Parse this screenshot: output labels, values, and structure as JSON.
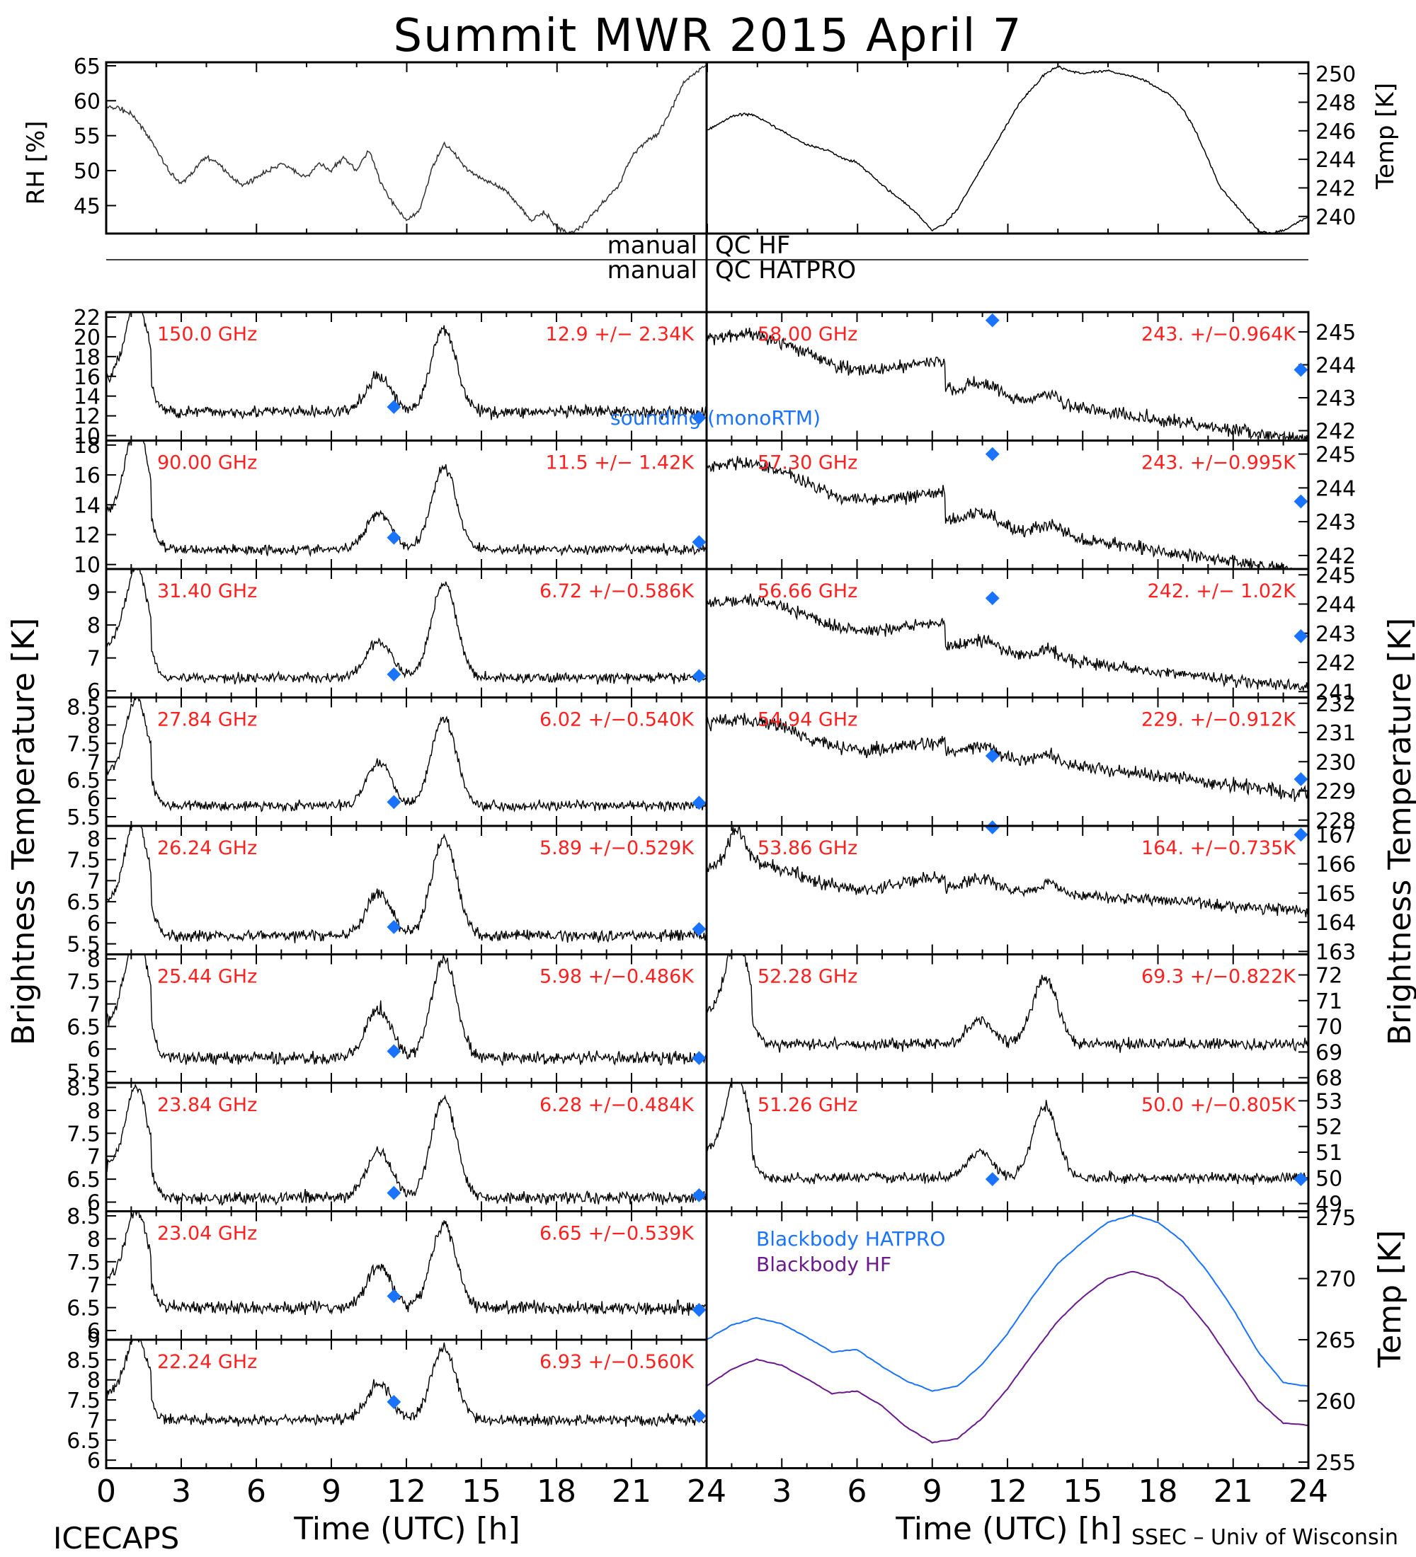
{
  "title": "Summit  MWR  2015  April    7",
  "qc_labels": {
    "manual_1": "manual",
    "qc_hf": "QC  HF",
    "manual_2": "manual",
    "qc_hatpro": "QC  HATPRO"
  },
  "axis_labels": {
    "rh": "RH  [%]",
    "temp_top": "Temp  [K]",
    "brightness_left": "Brightness  Temperature  [K]",
    "brightness_right": "Brightness  Temperature  [K]",
    "temp_bottom": "Temp  [K]",
    "time_left": "Time  (UTC)  [h]",
    "time_right": "Time  (UTC)  [h]"
  },
  "footer": {
    "left": "ICECAPS",
    "right": "SSEC  –  Univ of Wisconsin"
  },
  "legend_sounding": "sounding  (monoRTM)",
  "legend_bb": {
    "hatpro": "Blackbody  HATPRO",
    "hf": "Blackbody  HF"
  },
  "colors": {
    "red": "#ff2020",
    "blue": "#1a73ff",
    "purple": "#6a1a8a",
    "black": "#000000"
  },
  "chart_data": [
    {
      "type": "line",
      "panel": "rh",
      "ylabel": "RH  [%]",
      "ylim": [
        41,
        65.5
      ],
      "yticks": [
        45,
        50,
        55,
        60,
        65
      ],
      "x": [
        0,
        0.5,
        1,
        1.5,
        2,
        2.5,
        3,
        3.5,
        4,
        4.5,
        5,
        5.5,
        6,
        6.5,
        7,
        7.5,
        8,
        8.5,
        9,
        9.5,
        10,
        10.5,
        11,
        11.5,
        12,
        12.5,
        13,
        13.5,
        14,
        14.5,
        15,
        15.5,
        16,
        16.5,
        17,
        17.5,
        18,
        18.5,
        19,
        19.5,
        20,
        20.5,
        21,
        21.5,
        22,
        22.5,
        23,
        23.5,
        24
      ],
      "y": [
        59,
        59,
        58,
        56,
        53,
        50,
        48,
        50,
        52,
        51,
        49,
        48,
        49,
        50,
        51,
        50,
        49,
        51,
        50,
        52,
        50,
        53,
        48,
        45,
        43,
        44,
        50,
        54,
        52,
        50,
        49,
        48,
        47,
        45,
        43,
        44,
        42,
        41,
        42,
        44,
        46,
        48,
        52,
        54,
        55,
        58,
        62,
        64,
        65
      ]
    },
    {
      "type": "line",
      "panel": "temp_top",
      "ylabel": "Temp  [K]",
      "ylim": [
        238.8,
        250.8
      ],
      "yticks": [
        240,
        242,
        244,
        246,
        248,
        250
      ],
      "x": [
        0,
        0.5,
        1,
        1.5,
        2,
        2.5,
        3,
        3.5,
        4,
        4.5,
        5,
        5.5,
        6,
        6.5,
        7,
        7.5,
        8,
        8.5,
        9,
        9.5,
        10,
        10.5,
        11,
        11.5,
        12,
        12.5,
        13,
        13.5,
        14,
        14.5,
        15,
        15.5,
        16,
        16.5,
        17,
        17.5,
        18,
        18.5,
        19,
        19.5,
        20,
        20.5,
        21,
        21.5,
        22,
        22.5,
        23,
        23.5,
        24
      ],
      "y": [
        246,
        246.5,
        247,
        247.2,
        247,
        246.5,
        246,
        245.5,
        245,
        244.8,
        244.5,
        244,
        243.8,
        243,
        242.2,
        241.5,
        240.8,
        240,
        239,
        239.5,
        240.5,
        242,
        243.5,
        245,
        246.5,
        248,
        249,
        250,
        250.5,
        250.2,
        250,
        250.1,
        250.2,
        250,
        249.8,
        249.5,
        249,
        248.5,
        247.5,
        246,
        244,
        242,
        241,
        240,
        239,
        238.8,
        239,
        239.5,
        240
      ]
    },
    {
      "type": "line",
      "panel": "tb",
      "side": "left",
      "label": "150.0 GHz",
      "stat": "12.9  +/−  2.34K",
      "ylim": [
        9.5,
        22.5
      ],
      "yticks": [
        10,
        12,
        14,
        16,
        18,
        20,
        22
      ],
      "base": 12.4,
      "spike": [
        20.5,
        0.6
      ],
      "bump1": 3.6,
      "bump2": 8.5,
      "noise": 0.9,
      "model": [
        [
          11.5,
          12.9
        ],
        [
          23.7,
          11.8
        ]
      ]
    },
    {
      "type": "line",
      "panel": "tb",
      "side": "left",
      "label": "90.00 GHz",
      "stat": "11.5  +/−  1.42K",
      "ylim": [
        9.7,
        18.3
      ],
      "yticks": [
        10,
        12,
        14,
        16,
        18
      ],
      "base": 11.0,
      "spike": [
        17,
        0.6
      ],
      "bump1": 2.5,
      "bump2": 5.5,
      "noise": 0.5,
      "model": [
        [
          11.5,
          11.8
        ],
        [
          23.7,
          11.5
        ]
      ]
    },
    {
      "type": "line",
      "panel": "tb",
      "side": "left",
      "label": "31.40 GHz",
      "stat": "6.72  +/−0.586K",
      "ylim": [
        5.8,
        9.7
      ],
      "yticks": [
        6,
        7,
        8,
        9
      ],
      "base": 6.4,
      "spike": [
        8.8,
        0.6
      ],
      "bump1": 1.1,
      "bump2": 2.9,
      "noise": 0.22,
      "model": [
        [
          11.5,
          6.5
        ],
        [
          23.7,
          6.45
        ]
      ]
    },
    {
      "type": "line",
      "panel": "tb",
      "side": "left",
      "label": "27.84 GHz",
      "stat": "6.02  +/−0.540K",
      "ylim": [
        5.25,
        8.75
      ],
      "yticks": [
        5.5,
        6.0,
        6.5,
        7.0,
        7.5,
        8.0,
        8.5
      ],
      "base": 5.8,
      "spike": [
        7.9,
        0.6
      ],
      "bump1": 1.2,
      "bump2": 2.4,
      "noise": 0.2,
      "model": [
        [
          11.5,
          5.9
        ],
        [
          23.7,
          5.88
        ]
      ]
    },
    {
      "type": "line",
      "panel": "tb",
      "side": "left",
      "label": "26.24 GHz",
      "stat": "5.89  +/−0.529K",
      "ylim": [
        5.25,
        8.3
      ],
      "yticks": [
        5.5,
        6.0,
        6.5,
        7.0,
        7.5,
        8.0
      ],
      "base": 5.7,
      "spike": [
        7.7,
        0.6
      ],
      "bump1": 1.0,
      "bump2": 2.3,
      "noise": 0.2,
      "model": [
        [
          11.5,
          5.9
        ],
        [
          23.7,
          5.85
        ]
      ]
    },
    {
      "type": "line",
      "panel": "tb",
      "side": "left",
      "label": "25.44 GHz",
      "stat": "5.98  +/−0.486K",
      "ylim": [
        5.25,
        8.1
      ],
      "yticks": [
        5.5,
        6.0,
        6.5,
        7.0,
        7.5,
        8.0
      ],
      "base": 5.8,
      "spike": [
        7.8,
        0.6
      ],
      "bump1": 1.1,
      "bump2": 2.2,
      "noise": 0.2,
      "model": [
        [
          11.5,
          5.95
        ],
        [
          23.7,
          5.8
        ]
      ]
    },
    {
      "type": "line",
      "panel": "tb",
      "side": "left",
      "label": "23.84 GHz",
      "stat": "6.28  +/−0.484K",
      "ylim": [
        5.8,
        8.6
      ],
      "yticks": [
        6.0,
        6.5,
        7.0,
        7.5,
        8.0,
        8.5
      ],
      "base": 6.1,
      "spike": [
        7.8,
        0.6
      ],
      "bump1": 1.0,
      "bump2": 2.2,
      "noise": 0.2,
      "model": [
        [
          11.5,
          6.2
        ],
        [
          23.7,
          6.15
        ]
      ]
    },
    {
      "type": "line",
      "panel": "tb",
      "side": "left",
      "label": "23.04 GHz",
      "stat": "6.65  +/−0.539K",
      "ylim": [
        5.8,
        8.6
      ],
      "yticks": [
        6.0,
        6.5,
        7.0,
        7.5,
        8.0,
        8.5
      ],
      "base": 6.5,
      "spike": [
        8.0,
        0.6
      ],
      "bump1": 0.9,
      "bump2": 1.8,
      "noise": 0.2,
      "model": [
        [
          11.5,
          6.75
        ],
        [
          23.7,
          6.45
        ]
      ]
    },
    {
      "type": "line",
      "panel": "tb",
      "side": "left",
      "label": "22.24 GHz",
      "stat": "6.93  +/−0.560K",
      "ylim": [
        5.8,
        9.0
      ],
      "yticks": [
        6.0,
        6.5,
        7.0,
        7.5,
        8.0,
        8.5,
        9.0
      ],
      "base": 7.0,
      "spike": [
        8.5,
        0.6
      ],
      "bump1": 0.9,
      "bump2": 1.8,
      "noise": 0.2,
      "model": [
        [
          11.5,
          7.45
        ],
        [
          23.7,
          7.1
        ]
      ]
    },
    {
      "type": "line",
      "panel": "tb",
      "side": "right",
      "label": "58.00 GHz",
      "stat": "243.  +/−0.964K",
      "ylim": [
        241.7,
        245.6
      ],
      "yticks": [
        242,
        243,
        244,
        245
      ],
      "drift": [
        244.8,
        242.2
      ],
      "noise": 0.3,
      "model": [
        [
          11.4,
          245.35
        ],
        [
          23.7,
          243.85
        ]
      ]
    },
    {
      "type": "line",
      "panel": "tb",
      "side": "right",
      "label": "57.30 GHz",
      "stat": "243.  +/−0.995K",
      "ylim": [
        241.6,
        245.4
      ],
      "yticks": [
        242,
        243,
        244,
        245
      ],
      "drift": [
        244.6,
        242.0
      ],
      "noise": 0.28,
      "model": [
        [
          11.4,
          245.0
        ],
        [
          23.7,
          243.6
        ]
      ]
    },
    {
      "type": "line",
      "panel": "tb",
      "side": "right",
      "label": "56.66 GHz",
      "stat": "242.  +/−  1.02K",
      "ylim": [
        240.8,
        245.2
      ],
      "yticks": [
        241,
        242,
        243,
        244,
        245
      ],
      "drift": [
        244.0,
        241.6
      ],
      "noise": 0.3,
      "model": [
        [
          11.4,
          244.2
        ],
        [
          23.7,
          242.9
        ]
      ]
    },
    {
      "type": "line",
      "panel": "tb",
      "side": "right",
      "label": "54.94 GHz",
      "stat": "229.  +/−0.912K",
      "ylim": [
        227.8,
        232.2
      ],
      "yticks": [
        228,
        229,
        230,
        231,
        232
      ],
      "drift": [
        231.3,
        228.9
      ],
      "noise": 0.35,
      "model": [
        [
          11.4,
          230.2
        ],
        [
          23.7,
          229.4
        ]
      ]
    },
    {
      "type": "line",
      "panel": "tb",
      "side": "right",
      "label": "53.86 GHz",
      "stat": "164.  +/−0.735K",
      "ylim": [
        162.9,
        167.3
      ],
      "yticks": [
        163,
        164,
        165,
        166,
        167
      ],
      "drift": [
        165.8,
        164.4
      ],
      "noise": 0.3,
      "spike": [
        167,
        0.5
      ],
      "model": [
        [
          11.4,
          167.3
        ],
        [
          23.7,
          167.0
        ]
      ]
    },
    {
      "type": "line",
      "panel": "tb",
      "side": "right",
      "label": "52.28 GHz",
      "stat": "69.3  +/−0.822K",
      "ylim": [
        67.8,
        72.8
      ],
      "yticks": [
        68,
        69,
        70,
        71,
        72
      ],
      "base": 69.3,
      "spike": [
        72.3,
        0.6
      ],
      "bump1": 1.0,
      "bump2": 2.6,
      "noise": 0.35,
      "model": []
    },
    {
      "type": "line",
      "panel": "tb",
      "side": "right",
      "label": "51.26 GHz",
      "stat": "50.0  +/−0.805K",
      "ylim": [
        48.7,
        53.7
      ],
      "yticks": [
        49,
        50,
        51,
        52,
        53
      ],
      "base": 50.0,
      "spike": [
        52.8,
        0.6
      ],
      "bump1": 1.0,
      "bump2": 2.8,
      "noise": 0.3,
      "model": [
        [
          11.4,
          49.95
        ],
        [
          23.7,
          49.95
        ]
      ]
    },
    {
      "type": "line",
      "panel": "blackbody",
      "ylabel": "Temp  [K]",
      "ylim": [
        254.5,
        275.5
      ],
      "yticks": [
        255,
        260,
        265,
        270,
        275
      ],
      "x": [
        0,
        1,
        2,
        3,
        4,
        5,
        6,
        7,
        8,
        9,
        10,
        11,
        12,
        13,
        14,
        15,
        16,
        17,
        18,
        19,
        20,
        21,
        22,
        23,
        24
      ],
      "series": [
        {
          "name": "Blackbody  HATPRO",
          "values": [
            265,
            266.2,
            266.8,
            266.3,
            265.2,
            264.0,
            264.2,
            262.8,
            261.6,
            260.8,
            261.2,
            263.0,
            265.5,
            268.5,
            271.2,
            273.0,
            274.6,
            275.2,
            274.6,
            273.0,
            270.5,
            267.5,
            264.0,
            261.5,
            261.2
          ]
        },
        {
          "name": "Blackbody  HF",
          "values": [
            261.2,
            262.6,
            263.4,
            262.9,
            261.8,
            260.6,
            260.8,
            259.6,
            257.8,
            256.6,
            256.9,
            258.6,
            261.0,
            263.8,
            266.5,
            268.5,
            270.0,
            270.6,
            270.0,
            268.5,
            266.0,
            263.0,
            260.0,
            258.2,
            258.0
          ]
        }
      ]
    }
  ],
  "xticks": [
    0,
    3,
    6,
    9,
    12,
    15,
    18,
    21,
    24
  ]
}
